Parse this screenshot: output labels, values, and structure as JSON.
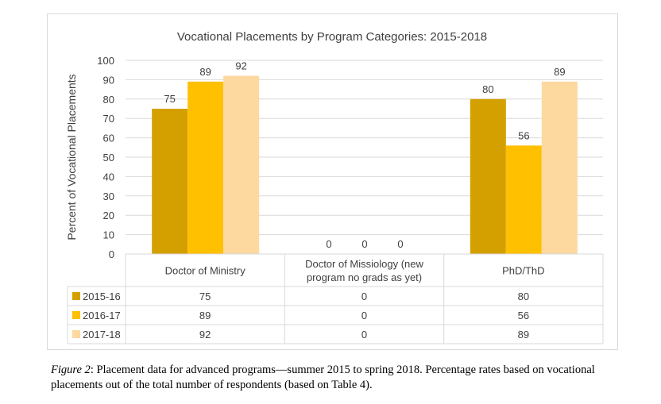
{
  "chart_data": {
    "type": "bar",
    "title": "Vocational Placements by Program Categories: 2015-2018",
    "xlabel": "",
    "ylabel": "Percent of Vocational Placements",
    "ylim": [
      0,
      100
    ],
    "yticks": [
      "0",
      "10",
      "20",
      "30",
      "40",
      "50",
      "60",
      "70",
      "80",
      "90",
      "100"
    ],
    "categories": [
      "Doctor of Ministry",
      "Doctor of Missiology (new program no grads as yet)",
      "PhD/ThD"
    ],
    "category_lines": [
      [
        "Doctor of Ministry"
      ],
      [
        "Doctor of Missiology (new",
        "program no grads as yet)"
      ],
      [
        "PhD/ThD"
      ]
    ],
    "series": [
      {
        "name": "2015-16",
        "values": [
          75,
          0,
          80
        ],
        "color": "#d4a000"
      },
      {
        "name": "2016-17",
        "values": [
          89,
          0,
          56
        ],
        "color": "#ffc000"
      },
      {
        "name": "2017-18",
        "values": [
          92,
          0,
          89
        ],
        "color": "#fdd9a0"
      }
    ],
    "grid": true,
    "legend": "data-table-below",
    "data_table": true
  },
  "caption": {
    "label": "Figure 2",
    "text": ": Placement data for advanced programs—summer 2015 to spring 2018. Percentage rates based on vocational placements out of the total number of respondents (based on Table 4)."
  }
}
